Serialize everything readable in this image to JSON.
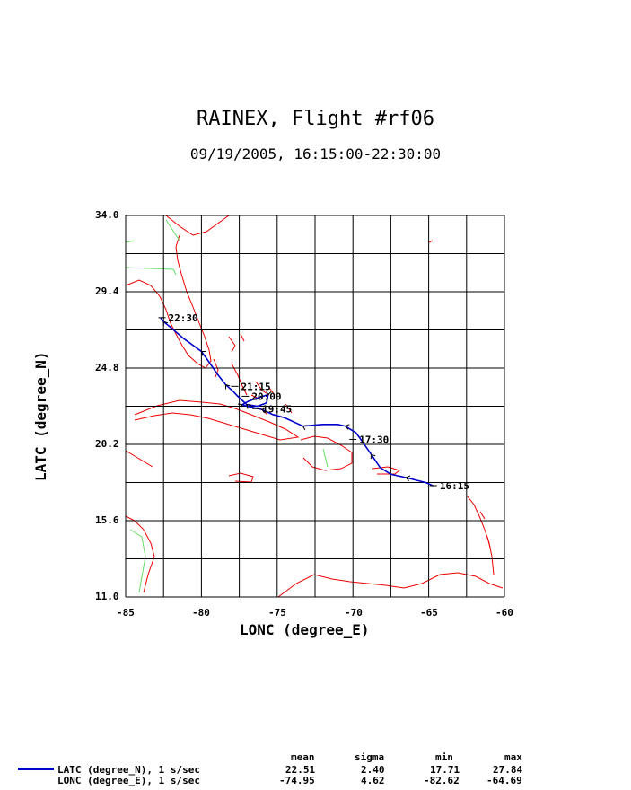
{
  "header": {
    "title": "RAINEX, Flight #rf06",
    "subtitle": "09/19/2005, 16:15:00-22:30:00"
  },
  "axes": {
    "xlabel": "LONC (degree_E)",
    "ylabel": "LATC (degree_N)",
    "xticks": [
      "-85",
      "-80",
      "-75",
      "-70",
      "-65",
      "-60"
    ],
    "yticks": [
      "34.0",
      "29.4",
      "24.8",
      "20.2",
      "15.6",
      "11.0"
    ],
    "xlim": [
      -85,
      -60
    ],
    "ylim": [
      11.0,
      34.0
    ]
  },
  "chart_data": {
    "type": "line",
    "title": "RAINEX, Flight #rf06",
    "subtitle": "09/19/2005, 16:15:00-22:30:00",
    "xlabel": "LONC (degree_E)",
    "ylabel": "LATC (degree_N)",
    "xlim": [
      -85,
      -60
    ],
    "ylim": [
      11.0,
      34.0
    ],
    "grid": true,
    "series": [
      {
        "name": "LATC (degree_N), 1 s/sec",
        "color": "#0000cc",
        "points": [
          [
            -64.7,
            17.7
          ],
          [
            -65.2,
            17.9
          ],
          [
            -66.5,
            18.2
          ],
          [
            -67.5,
            18.4
          ],
          [
            -68.2,
            18.8
          ],
          [
            -68.8,
            19.6
          ],
          [
            -69.4,
            20.4
          ],
          [
            -69.8,
            20.9
          ],
          [
            -70.5,
            21.3
          ],
          [
            -71.0,
            21.4
          ],
          [
            -72.0,
            21.4
          ],
          [
            -73.3,
            21.3
          ],
          [
            -74.5,
            21.8
          ],
          [
            -75.3,
            22.0
          ],
          [
            -76.0,
            22.3
          ],
          [
            -76.5,
            22.4
          ],
          [
            -77.0,
            22.5
          ],
          [
            -77.3,
            22.6
          ],
          [
            -76.9,
            22.8
          ],
          [
            -76.3,
            23.0
          ],
          [
            -75.6,
            23.2
          ],
          [
            -75.7,
            22.7
          ],
          [
            -76.3,
            22.5
          ],
          [
            -77.0,
            22.6
          ],
          [
            -77.6,
            23.1
          ],
          [
            -77.9,
            23.4
          ],
          [
            -78.4,
            23.8
          ],
          [
            -79.0,
            24.5
          ],
          [
            -79.6,
            25.3
          ],
          [
            -80.0,
            25.8
          ],
          [
            -81.2,
            26.6
          ],
          [
            -82.1,
            27.3
          ],
          [
            -82.5,
            27.6
          ],
          [
            -82.7,
            27.84
          ]
        ]
      }
    ],
    "time_labels": [
      {
        "text": "16:15",
        "lon": -64.69,
        "lat": 17.71
      },
      {
        "text": "17:30",
        "lon": -70.0,
        "lat": 20.5
      },
      {
        "text": "19:45",
        "lon": -76.4,
        "lat": 22.35
      },
      {
        "text": "20:00",
        "lon": -77.1,
        "lat": 23.1
      },
      {
        "text": "21:15",
        "lon": -77.8,
        "lat": 23.7
      },
      {
        "text": "22:30",
        "lon": -82.6,
        "lat": 27.84
      }
    ]
  },
  "legend": {
    "label_latc": "LATC (degree_N), 1 s/sec",
    "label_lonc": "LONC (degree_E), 1 s/sec",
    "color": "#0000cc"
  },
  "stats": {
    "headers": [
      "mean",
      "sigma",
      "min",
      "max"
    ],
    "latc": [
      "22.51",
      "2.40",
      "17.71",
      "27.84"
    ],
    "lonc": [
      "-74.95",
      "4.62",
      "-82.62",
      "-64.69"
    ]
  },
  "map_colors": {
    "coastline": "#ee0000",
    "borders": "#66dd66"
  }
}
